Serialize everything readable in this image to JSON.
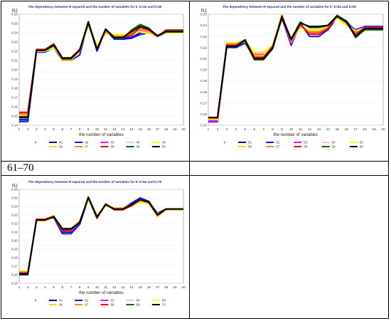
{
  "range_label": "61–70",
  "charts": [
    {
      "id": "chart-1",
      "title": "The dependency between R-squared and the number of variables for k: k=40 and k=50",
      "ylabel": "R2",
      "xlabel": "the number of variables",
      "legend_label": "k",
      "type": "line",
      "x": [
        1,
        2,
        3,
        4,
        5,
        6,
        7,
        8,
        9,
        10,
        11,
        12,
        13,
        14,
        15,
        16,
        17,
        18,
        19,
        20
      ],
      "ylim": [
        0.14,
        0.26
      ],
      "yticks": [
        0.14,
        0.15,
        0.16,
        0.17,
        0.18,
        0.19,
        0.2,
        0.21,
        0.22,
        0.23,
        0.24,
        0.25,
        0.26
      ],
      "series": [
        {
          "name": "41",
          "color": "#00008b",
          "values": [
            0.146,
            0.146,
            0.22,
            0.22,
            0.226,
            0.211,
            0.211,
            0.22,
            0.25,
            0.225,
            0.242,
            0.234,
            0.234,
            0.235,
            0.24,
            0.242,
            0.236,
            0.24,
            0.24,
            0.24
          ]
        },
        {
          "name": "42",
          "color": "#1010ff",
          "values": [
            0.144,
            0.144,
            0.219,
            0.219,
            0.224,
            0.21,
            0.21,
            0.216,
            0.251,
            0.22,
            0.243,
            0.233,
            0.233,
            0.234,
            0.238,
            0.24,
            0.236,
            0.241,
            0.241,
            0.241
          ]
        },
        {
          "name": "43",
          "color": "#ff00ff",
          "values": [
            0.152,
            0.152,
            0.22,
            0.22,
            0.227,
            0.212,
            0.212,
            0.221,
            0.249,
            0.224,
            0.241,
            0.236,
            0.236,
            0.238,
            0.243,
            0.24,
            0.236,
            0.242,
            0.242,
            0.242
          ]
        },
        {
          "name": "44",
          "color": "#ffc0cb",
          "values": [
            0.15,
            0.15,
            0.221,
            0.221,
            0.225,
            0.213,
            0.213,
            0.222,
            0.247,
            0.226,
            0.24,
            0.237,
            0.237,
            0.238,
            0.242,
            0.239,
            0.237,
            0.241,
            0.241,
            0.241
          ]
        },
        {
          "name": "45",
          "color": "#ffff00",
          "values": [
            0.149,
            0.149,
            0.22,
            0.22,
            0.224,
            0.212,
            0.212,
            0.221,
            0.248,
            0.227,
            0.239,
            0.238,
            0.238,
            0.239,
            0.241,
            0.239,
            0.237,
            0.24,
            0.24,
            0.24
          ]
        },
        {
          "name": "46",
          "color": "#ffd700",
          "values": [
            0.151,
            0.151,
            0.221,
            0.221,
            0.226,
            0.21,
            0.21,
            0.22,
            0.249,
            0.225,
            0.24,
            0.237,
            0.237,
            0.24,
            0.244,
            0.241,
            0.236,
            0.241,
            0.241,
            0.241
          ]
        },
        {
          "name": "47",
          "color": "#ff8c00",
          "values": [
            0.153,
            0.153,
            0.221,
            0.221,
            0.227,
            0.211,
            0.211,
            0.222,
            0.25,
            0.223,
            0.241,
            0.236,
            0.236,
            0.239,
            0.244,
            0.242,
            0.236,
            0.242,
            0.242,
            0.242
          ]
        },
        {
          "name": "48",
          "color": "#ff0000",
          "values": [
            0.154,
            0.154,
            0.222,
            0.222,
            0.228,
            0.213,
            0.213,
            0.222,
            0.251,
            0.222,
            0.243,
            0.235,
            0.235,
            0.237,
            0.246,
            0.243,
            0.236,
            0.243,
            0.243,
            0.243
          ]
        },
        {
          "name": "49",
          "color": "#006400",
          "values": [
            0.148,
            0.148,
            0.221,
            0.221,
            0.226,
            0.213,
            0.213,
            0.221,
            0.25,
            0.222,
            0.244,
            0.234,
            0.234,
            0.243,
            0.249,
            0.245,
            0.236,
            0.242,
            0.242,
            0.242
          ]
        },
        {
          "name": "50",
          "color": "#000000",
          "values": [
            0.149,
            0.149,
            0.221,
            0.221,
            0.227,
            0.212,
            0.212,
            0.221,
            0.252,
            0.222,
            0.244,
            0.235,
            0.235,
            0.241,
            0.247,
            0.244,
            0.237,
            0.241,
            0.241,
            0.241
          ]
        }
      ]
    },
    {
      "id": "chart-2",
      "title": "The dependency between R-squared and the number of variables for k: k=50 and k=60",
      "ylabel": "R2",
      "xlabel": "the number of variables",
      "legend_label": "k",
      "type": "line",
      "x": [
        1,
        2,
        3,
        4,
        5,
        6,
        7,
        8,
        9,
        10,
        11,
        12,
        13,
        14,
        15,
        16,
        17,
        18,
        19,
        20
      ],
      "ylim": [
        0.15,
        0.25
      ],
      "yticks": [
        0.15,
        0.16,
        0.17,
        0.18,
        0.19,
        0.2,
        0.21,
        0.22,
        0.23,
        0.24,
        0.25
      ],
      "series": [
        {
          "name": "51",
          "color": "#00008b",
          "values": [
            0.155,
            0.155,
            0.221,
            0.221,
            0.226,
            0.212,
            0.212,
            0.221,
            0.246,
            0.225,
            0.241,
            0.233,
            0.233,
            0.238,
            0.248,
            0.244,
            0.234,
            0.238,
            0.238,
            0.238
          ]
        },
        {
          "name": "52",
          "color": "#1010ff",
          "values": [
            0.154,
            0.154,
            0.22,
            0.22,
            0.224,
            0.211,
            0.211,
            0.22,
            0.247,
            0.222,
            0.242,
            0.23,
            0.23,
            0.236,
            0.247,
            0.242,
            0.236,
            0.239,
            0.239,
            0.239
          ]
        },
        {
          "name": "53",
          "color": "#ff00ff",
          "values": [
            0.153,
            0.153,
            0.222,
            0.222,
            0.226,
            0.214,
            0.214,
            0.221,
            0.248,
            0.224,
            0.24,
            0.234,
            0.234,
            0.238,
            0.247,
            0.241,
            0.235,
            0.238,
            0.238,
            0.238
          ]
        },
        {
          "name": "54",
          "color": "#ffc0cb",
          "values": [
            0.156,
            0.156,
            0.223,
            0.223,
            0.225,
            0.215,
            0.215,
            0.222,
            0.248,
            0.226,
            0.239,
            0.235,
            0.235,
            0.239,
            0.246,
            0.241,
            0.235,
            0.238,
            0.238,
            0.238
          ]
        },
        {
          "name": "55",
          "color": "#ffff00",
          "values": [
            0.155,
            0.155,
            0.222,
            0.222,
            0.226,
            0.216,
            0.216,
            0.222,
            0.249,
            0.227,
            0.238,
            0.236,
            0.236,
            0.24,
            0.246,
            0.24,
            0.235,
            0.237,
            0.237,
            0.237
          ]
        },
        {
          "name": "56",
          "color": "#ffd700",
          "values": [
            0.157,
            0.157,
            0.224,
            0.224,
            0.227,
            0.213,
            0.213,
            0.222,
            0.25,
            0.226,
            0.239,
            0.235,
            0.235,
            0.24,
            0.247,
            0.241,
            0.233,
            0.237,
            0.237,
            0.237
          ]
        },
        {
          "name": "57",
          "color": "#ff8c00",
          "values": [
            0.156,
            0.156,
            0.223,
            0.223,
            0.227,
            0.212,
            0.212,
            0.221,
            0.249,
            0.225,
            0.24,
            0.233,
            0.233,
            0.238,
            0.248,
            0.242,
            0.232,
            0.237,
            0.237,
            0.237
          ]
        },
        {
          "name": "58",
          "color": "#ff0000",
          "values": [
            0.157,
            0.157,
            0.222,
            0.222,
            0.226,
            0.211,
            0.211,
            0.221,
            0.247,
            0.227,
            0.241,
            0.232,
            0.232,
            0.237,
            0.249,
            0.243,
            0.232,
            0.238,
            0.238,
            0.238
          ]
        },
        {
          "name": "59",
          "color": "#006400",
          "values": [
            0.157,
            0.157,
            0.221,
            0.221,
            0.226,
            0.209,
            0.209,
            0.219,
            0.247,
            0.228,
            0.243,
            0.238,
            0.238,
            0.24,
            0.249,
            0.244,
            0.229,
            0.236,
            0.236,
            0.236
          ]
        },
        {
          "name": "60",
          "color": "#000000",
          "values": [
            0.157,
            0.157,
            0.221,
            0.221,
            0.227,
            0.21,
            0.21,
            0.22,
            0.248,
            0.227,
            0.242,
            0.239,
            0.239,
            0.24,
            0.248,
            0.243,
            0.23,
            0.237,
            0.237,
            0.237
          ]
        }
      ]
    },
    {
      "id": "chart-3",
      "title": "The dependency between R-squared and the number of variables for k: k=60 and k=70",
      "ylabel": "R2",
      "xlabel": "the number of variables",
      "legend_label": "k",
      "type": "line",
      "x": [
        1,
        2,
        3,
        4,
        5,
        6,
        7,
        8,
        9,
        10,
        11,
        12,
        13,
        14,
        15,
        16,
        17,
        18,
        19,
        20
      ],
      "ylim": [
        0.15,
        0.26
      ],
      "yticks": [
        0.15,
        0.16,
        0.17,
        0.18,
        0.19,
        0.2,
        0.21,
        0.22,
        0.23,
        0.24,
        0.25,
        0.26
      ],
      "series": [
        {
          "name": "61",
          "color": "#00008b",
          "values": [
            0.162,
            0.162,
            0.225,
            0.225,
            0.228,
            0.21,
            0.21,
            0.221,
            0.25,
            0.228,
            0.242,
            0.238,
            0.238,
            0.243,
            0.248,
            0.245,
            0.232,
            0.237,
            0.237,
            0.237
          ]
        },
        {
          "name": "62",
          "color": "#1010ff",
          "values": [
            0.16,
            0.16,
            0.224,
            0.224,
            0.227,
            0.208,
            0.208,
            0.219,
            0.249,
            0.227,
            0.242,
            0.237,
            0.237,
            0.244,
            0.25,
            0.246,
            0.231,
            0.236,
            0.236,
            0.236
          ]
        },
        {
          "name": "63",
          "color": "#ff00ff",
          "values": [
            0.163,
            0.163,
            0.225,
            0.225,
            0.228,
            0.211,
            0.211,
            0.221,
            0.25,
            0.226,
            0.243,
            0.236,
            0.236,
            0.241,
            0.247,
            0.244,
            0.23,
            0.237,
            0.237,
            0.237
          ]
        },
        {
          "name": "64",
          "color": "#ffc0cb",
          "values": [
            0.163,
            0.163,
            0.224,
            0.224,
            0.229,
            0.212,
            0.212,
            0.222,
            0.249,
            0.227,
            0.241,
            0.237,
            0.237,
            0.24,
            0.246,
            0.243,
            0.231,
            0.236,
            0.236,
            0.236
          ]
        },
        {
          "name": "65",
          "color": "#ffff00",
          "values": [
            0.164,
            0.164,
            0.223,
            0.223,
            0.228,
            0.213,
            0.213,
            0.223,
            0.248,
            0.228,
            0.241,
            0.238,
            0.238,
            0.241,
            0.245,
            0.243,
            0.229,
            0.236,
            0.236,
            0.236
          ]
        },
        {
          "name": "66",
          "color": "#ffd700",
          "values": [
            0.164,
            0.164,
            0.224,
            0.224,
            0.229,
            0.214,
            0.214,
            0.223,
            0.249,
            0.229,
            0.242,
            0.238,
            0.238,
            0.242,
            0.246,
            0.244,
            0.228,
            0.236,
            0.236,
            0.236
          ]
        },
        {
          "name": "67",
          "color": "#ff8c00",
          "values": [
            0.163,
            0.163,
            0.225,
            0.225,
            0.229,
            0.213,
            0.213,
            0.222,
            0.25,
            0.227,
            0.243,
            0.237,
            0.237,
            0.241,
            0.247,
            0.244,
            0.229,
            0.237,
            0.237,
            0.237
          ]
        },
        {
          "name": "68",
          "color": "#ff0000",
          "values": [
            0.162,
            0.162,
            0.225,
            0.225,
            0.228,
            0.212,
            0.212,
            0.222,
            0.25,
            0.226,
            0.243,
            0.236,
            0.236,
            0.241,
            0.248,
            0.245,
            0.23,
            0.237,
            0.237,
            0.237
          ]
        },
        {
          "name": "69",
          "color": "#006400",
          "values": [
            0.161,
            0.161,
            0.224,
            0.224,
            0.228,
            0.213,
            0.213,
            0.221,
            0.25,
            0.227,
            0.242,
            0.237,
            0.237,
            0.242,
            0.248,
            0.245,
            0.23,
            0.237,
            0.237,
            0.237
          ]
        },
        {
          "name": "70",
          "color": "#000000",
          "values": [
            0.161,
            0.161,
            0.224,
            0.224,
            0.228,
            0.214,
            0.214,
            0.221,
            0.251,
            0.228,
            0.242,
            0.237,
            0.237,
            0.242,
            0.248,
            0.245,
            0.23,
            0.237,
            0.237,
            0.237
          ]
        }
      ]
    }
  ]
}
